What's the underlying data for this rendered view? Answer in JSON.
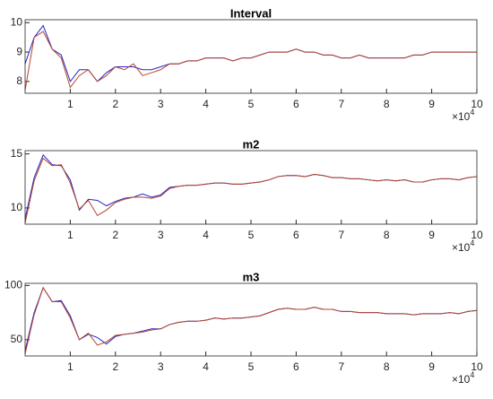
{
  "chart_data": [
    {
      "type": "line",
      "title": "Interval",
      "x": [
        0,
        2000,
        4000,
        6000,
        8000,
        10000,
        12000,
        14000,
        16000,
        18000,
        20000,
        22000,
        24000,
        26000,
        28000,
        30000,
        32000,
        34000,
        36000,
        38000,
        40000,
        42000,
        44000,
        46000,
        48000,
        50000,
        52000,
        54000,
        56000,
        58000,
        60000,
        62000,
        64000,
        66000,
        68000,
        70000,
        72000,
        74000,
        76000,
        78000,
        80000,
        82000,
        84000,
        86000,
        88000,
        90000,
        92000,
        94000,
        96000,
        98000,
        100000
      ],
      "series": [
        {
          "color": "#2424c8",
          "values": [
            8.6,
            9.5,
            9.9,
            9.1,
            8.9,
            8.0,
            8.4,
            8.4,
            8.0,
            8.3,
            8.5,
            8.5,
            8.5,
            8.4,
            8.4,
            8.5,
            8.6,
            8.6,
            8.7,
            8.7,
            8.8,
            8.8,
            8.8,
            8.7,
            8.8,
            8.8,
            8.9,
            9.0,
            9.0,
            9.0,
            9.1,
            9.0,
            9.0,
            8.9,
            8.9,
            8.8,
            8.8,
            8.9,
            8.8,
            8.8,
            8.8,
            8.8,
            8.8,
            8.9,
            8.9,
            9.0,
            9.0,
            9.0,
            9.0,
            9.0,
            9.0
          ]
        },
        {
          "color": "#b5452a",
          "values": [
            7.7,
            9.5,
            9.7,
            9.1,
            8.8,
            7.8,
            8.2,
            8.4,
            8.0,
            8.2,
            8.5,
            8.4,
            8.6,
            8.2,
            8.3,
            8.4,
            8.6,
            8.6,
            8.7,
            8.7,
            8.8,
            8.8,
            8.8,
            8.7,
            8.8,
            8.8,
            8.9,
            9.0,
            9.0,
            9.0,
            9.1,
            9.0,
            9.0,
            8.9,
            8.9,
            8.8,
            8.8,
            8.9,
            8.8,
            8.8,
            8.8,
            8.8,
            8.8,
            8.9,
            8.9,
            9.0,
            9.0,
            9.0,
            9.0,
            9.0,
            9.0
          ]
        }
      ],
      "xlim": [
        0,
        100000
      ],
      "xticks": [
        {
          "value": 10000,
          "label": "1"
        },
        {
          "value": 20000,
          "label": "2"
        },
        {
          "value": 30000,
          "label": "3"
        },
        {
          "value": 40000,
          "label": "4"
        },
        {
          "value": 50000,
          "label": "5"
        },
        {
          "value": 60000,
          "label": "6"
        },
        {
          "value": 70000,
          "label": "7"
        },
        {
          "value": 80000,
          "label": "8"
        },
        {
          "value": 90000,
          "label": "9"
        },
        {
          "value": 100000,
          "label": "10"
        }
      ],
      "x_exponent": {
        "base": "×10",
        "power": "4"
      },
      "ylim": [
        7.6,
        10.1
      ],
      "yticks": [
        8,
        9,
        10
      ]
    },
    {
      "type": "line",
      "title": "m2",
      "x": [
        0,
        2000,
        4000,
        6000,
        8000,
        10000,
        12000,
        14000,
        16000,
        18000,
        20000,
        22000,
        24000,
        26000,
        28000,
        30000,
        32000,
        34000,
        36000,
        38000,
        40000,
        42000,
        44000,
        46000,
        48000,
        50000,
        52000,
        54000,
        56000,
        58000,
        60000,
        62000,
        64000,
        66000,
        68000,
        70000,
        72000,
        74000,
        76000,
        78000,
        80000,
        82000,
        84000,
        86000,
        88000,
        90000,
        92000,
        94000,
        96000,
        98000,
        100000
      ],
      "series": [
        {
          "color": "#2424c8",
          "values": [
            9.0,
            12.8,
            14.9,
            14.0,
            13.9,
            12.6,
            9.8,
            10.8,
            10.7,
            10.2,
            10.6,
            10.9,
            11.0,
            11.3,
            11.0,
            11.2,
            11.9,
            12.0,
            12.1,
            12.1,
            12.2,
            12.3,
            12.3,
            12.2,
            12.2,
            12.3,
            12.4,
            12.6,
            12.9,
            13.0,
            13.0,
            12.9,
            13.1,
            13.0,
            12.8,
            12.8,
            12.7,
            12.7,
            12.6,
            12.5,
            12.6,
            12.5,
            12.6,
            12.4,
            12.4,
            12.6,
            12.7,
            12.7,
            12.6,
            12.8,
            12.9
          ]
        },
        {
          "color": "#b5452a",
          "values": [
            8.6,
            12.5,
            14.6,
            13.9,
            14.0,
            12.3,
            9.9,
            10.7,
            9.3,
            9.8,
            10.5,
            10.8,
            11.0,
            11.0,
            10.9,
            11.1,
            11.8,
            12.0,
            12.1,
            12.1,
            12.2,
            12.3,
            12.3,
            12.2,
            12.2,
            12.3,
            12.4,
            12.6,
            12.9,
            13.0,
            13.0,
            12.9,
            13.1,
            13.0,
            12.8,
            12.8,
            12.7,
            12.7,
            12.6,
            12.5,
            12.6,
            12.5,
            12.6,
            12.4,
            12.4,
            12.6,
            12.7,
            12.7,
            12.6,
            12.8,
            12.9
          ]
        }
      ],
      "xlim": [
        0,
        100000
      ],
      "xticks": [
        {
          "value": 10000,
          "label": "1"
        },
        {
          "value": 20000,
          "label": "2"
        },
        {
          "value": 30000,
          "label": "3"
        },
        {
          "value": 40000,
          "label": "4"
        },
        {
          "value": 50000,
          "label": "5"
        },
        {
          "value": 60000,
          "label": "6"
        },
        {
          "value": 70000,
          "label": "7"
        },
        {
          "value": 80000,
          "label": "8"
        },
        {
          "value": 90000,
          "label": "9"
        },
        {
          "value": 100000,
          "label": "10"
        }
      ],
      "x_exponent": {
        "base": "×10",
        "power": "4"
      },
      "ylim": [
        8.5,
        15.3
      ],
      "yticks": [
        10,
        15
      ]
    },
    {
      "type": "line",
      "title": "m3",
      "x": [
        0,
        2000,
        4000,
        6000,
        8000,
        10000,
        12000,
        14000,
        16000,
        18000,
        20000,
        22000,
        24000,
        26000,
        28000,
        30000,
        32000,
        34000,
        36000,
        38000,
        40000,
        42000,
        44000,
        46000,
        48000,
        50000,
        52000,
        54000,
        56000,
        58000,
        60000,
        62000,
        64000,
        66000,
        68000,
        70000,
        72000,
        74000,
        76000,
        78000,
        80000,
        82000,
        84000,
        86000,
        88000,
        90000,
        92000,
        94000,
        96000,
        98000,
        100000
      ],
      "series": [
        {
          "color": "#2424c8",
          "values": [
            40,
            75,
            98,
            85,
            86,
            72,
            50,
            55,
            52,
            46,
            53,
            55,
            56,
            58,
            60,
            60,
            64,
            66,
            67,
            67,
            68,
            70,
            69,
            70,
            70,
            71,
            72,
            75,
            78,
            79,
            78,
            78,
            80,
            78,
            78,
            76,
            76,
            75,
            75,
            75,
            74,
            74,
            74,
            73,
            74,
            74,
            74,
            75,
            74,
            76,
            77
          ]
        },
        {
          "color": "#b5452a",
          "values": [
            37,
            73,
            98,
            85,
            85,
            70,
            50,
            56,
            45,
            48,
            54,
            55,
            56,
            57,
            59,
            60,
            64,
            66,
            67,
            67,
            68,
            70,
            69,
            70,
            70,
            71,
            72,
            75,
            78,
            79,
            78,
            78,
            80,
            78,
            78,
            76,
            76,
            75,
            75,
            75,
            74,
            74,
            74,
            73,
            74,
            74,
            74,
            75,
            74,
            76,
            77
          ]
        }
      ],
      "xlim": [
        0,
        100000
      ],
      "xticks": [
        {
          "value": 10000,
          "label": "1"
        },
        {
          "value": 20000,
          "label": "2"
        },
        {
          "value": 30000,
          "label": "3"
        },
        {
          "value": 40000,
          "label": "4"
        },
        {
          "value": 50000,
          "label": "5"
        },
        {
          "value": 60000,
          "label": "6"
        },
        {
          "value": 70000,
          "label": "7"
        },
        {
          "value": 80000,
          "label": "8"
        },
        {
          "value": 90000,
          "label": "9"
        },
        {
          "value": 100000,
          "label": "10"
        }
      ],
      "x_exponent": {
        "base": "×10",
        "power": "4"
      },
      "ylim": [
        35,
        102
      ],
      "yticks": [
        50,
        100
      ]
    }
  ]
}
